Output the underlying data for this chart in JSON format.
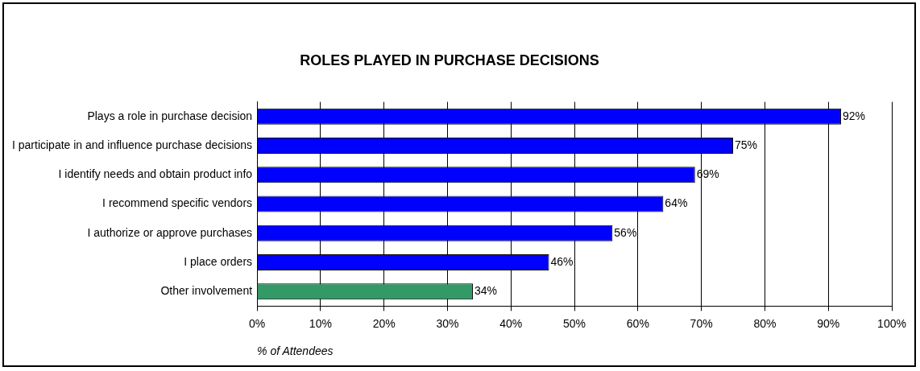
{
  "chart_data": {
    "type": "bar",
    "orientation": "horizontal",
    "title": "ROLES PLAYED IN PURCHASE DECISIONS",
    "xlabel": "% of Attendees",
    "categories": [
      "Plays a role in purchase decision",
      "I participate in and influence purchase decisions",
      "I identify needs and obtain product info",
      "I recommend specific vendors",
      "I authorize or approve purchases",
      "I place orders",
      "Other involvement"
    ],
    "values": [
      92,
      75,
      69,
      64,
      56,
      46,
      34
    ],
    "colors": [
      "#0000ff",
      "#0000ff",
      "#0000ff",
      "#0000ff",
      "#0000ff",
      "#0000ff",
      "#339966"
    ],
    "value_labels": [
      "92%",
      "75%",
      "69%",
      "64%",
      "56%",
      "46%",
      "34%"
    ],
    "xlim": [
      0,
      100
    ],
    "xticks": [
      {
        "value": 0,
        "label": "0%"
      },
      {
        "value": 10,
        "label": "10%"
      },
      {
        "value": 20,
        "label": "20%"
      },
      {
        "value": 30,
        "label": "30%"
      },
      {
        "value": 40,
        "label": "40%"
      },
      {
        "value": 50,
        "label": "50%"
      },
      {
        "value": 60,
        "label": "60%"
      },
      {
        "value": 70,
        "label": "70%"
      },
      {
        "value": 80,
        "label": "80%"
      },
      {
        "value": 90,
        "label": "90%"
      },
      {
        "value": 100,
        "label": "100%"
      }
    ],
    "grid": "x",
    "legend": false
  }
}
